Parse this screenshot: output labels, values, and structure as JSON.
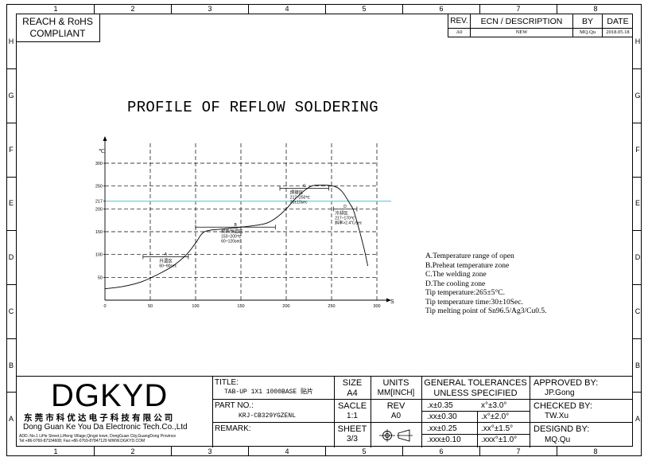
{
  "zones": {
    "cols": [
      "1",
      "2",
      "3",
      "4",
      "5",
      "6",
      "7",
      "8"
    ],
    "rows": [
      "H",
      "G",
      "F",
      "E",
      "D",
      "C",
      "B",
      "A"
    ]
  },
  "compliance": {
    "line1": "REACH & RoHS",
    "line2": "COMPLIANT"
  },
  "revision": {
    "headers": {
      "rev": "REV.",
      "ecn": "ECN / DESCRIPTION",
      "by": "BY",
      "date": "DATE"
    },
    "row": {
      "rev": "A0",
      "ecn": "NEW",
      "by": "MQ.Qu",
      "date": "2018.05.18"
    }
  },
  "drawing_title": "PROFILE OF REFLOW SOLDERING",
  "chart_data": {
    "type": "line",
    "ylabel": "℃",
    "xlabel": "S",
    "x_ticks": [
      0,
      50,
      100,
      150,
      200,
      250,
      300
    ],
    "y_ticks": [
      50,
      100,
      150,
      200,
      217,
      250,
      300
    ],
    "xlim": [
      0,
      300
    ],
    "ylim": [
      0,
      300
    ],
    "grid": true,
    "liquidus_line": 217,
    "series": [
      {
        "x": [
          0,
          20,
          40,
          60,
          75,
          90,
          100,
          110,
          130,
          150,
          170,
          180,
          190,
          200,
          210,
          220,
          228,
          235,
          245,
          255,
          262,
          270,
          275,
          285,
          290
        ],
        "y": [
          25,
          30,
          40,
          58,
          75,
          100,
          125,
          150,
          156,
          160,
          165,
          170,
          182,
          200,
          222,
          240,
          250,
          252,
          252,
          248,
          237,
          212,
          192,
          120,
          75
        ]
      }
    ],
    "zones": [
      {
        "letter": "A",
        "label": "升温区",
        "range": "60~90sec",
        "x1": 42,
        "x2": 92,
        "y": 95
      },
      {
        "letter": "B",
        "label": "预热恒温区",
        "range1": "150~200℃",
        "range2": "60~120sec",
        "x1": 100,
        "x2": 188,
        "y": 160
      },
      {
        "letter": "C",
        "label": "焊接区",
        "range1": "217~250℃",
        "range2": "30±10sec",
        "x1": 193,
        "x2": 247,
        "y": 245
      },
      {
        "letter": "D",
        "label": "冷却区",
        "range1": "217~170℃",
        "range2": "斜率>2.4℃/sec",
        "x1": 252,
        "x2": 278,
        "y": 200
      }
    ]
  },
  "notes": [
    "A.Temperature range of open",
    "B.Preheat temperature zone",
    "C.The welding zone",
    "D.The cooling zone",
    "Tip temperature:265±5°C.",
    "Tip temperature time:30±10Sec.",
    "Tip melting point of Sn96.5/Ag3/Cu0.5."
  ],
  "company": {
    "logo": "DGKYD",
    "cn_name": "东莞市科优达电子科技有限公司",
    "en_name": "Dong Guan Ke You Da Electronic Tech.Co.,Ltd",
    "address": "ADD.:No.1 LiHe Street,LiHeng Village,Qingxi town, DongGuan City,GuangDong Province",
    "contact": "Tel:+86-0769-87334608; Fax:+86-0769-87847129  WWW.DGKYD.COM"
  },
  "title_block": {
    "title_label": "TITLE:",
    "title_value": "TAB-UP 1X1 1000BASE 贴片",
    "part_label": "PART NO.:",
    "part_value": "KRJ-CB329YGZENL",
    "remark_label": "REMARK:",
    "size_label": "SIZE",
    "size_value": "A4",
    "units_label": "UNITS",
    "units_value": "MM[INCH]",
    "scale_label": "SACLE",
    "scale_value": "1:1",
    "rev_label": "REV",
    "rev_value": "A0",
    "sheet_label": "SHEET",
    "sheet_value": "3/3",
    "tol_title1": "GENERAL TOLERANCES",
    "tol_title2": "UNLESS SPECIFIED",
    "tol": [
      {
        "lin": ".x±0.35",
        "ang": "x°±3.0°"
      },
      {
        "lin": ".xx±0.30",
        "ang": ".x°±2.0°"
      },
      {
        "lin": ".xx±0.25",
        "ang": ".xx°±1.5°"
      },
      {
        "lin": ".xxx±0.10",
        "ang": ".xxx°±1.0°"
      }
    ],
    "approved_label": "APPROVED BY:",
    "approved_value": "JP.Gong",
    "checked_label": "CHECKED BY:",
    "checked_value": "TW.Xu",
    "designed_label": "DESIGND BY:",
    "designed_value": "MQ.Qu"
  }
}
